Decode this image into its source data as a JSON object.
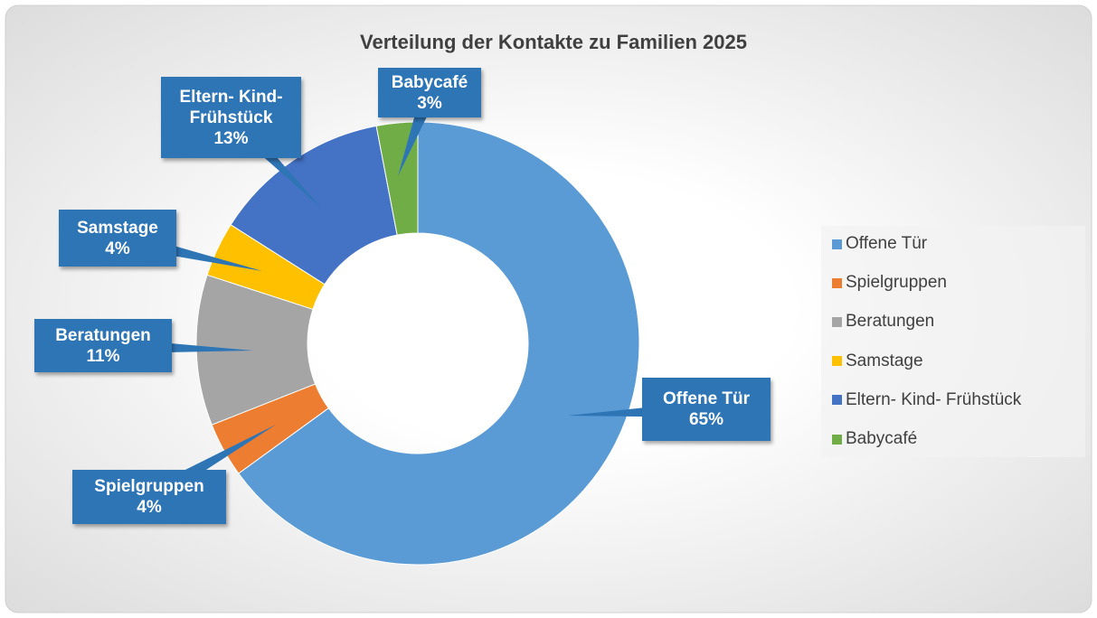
{
  "chart_data": {
    "type": "donut",
    "title": "Verteilung der Kontakte zu Familien 2025",
    "categories": [
      "Offene Tür",
      "Spielgruppen",
      "Beratungen",
      "Samstage",
      "Eltern- Kind- Frühstück",
      "Babycafé"
    ],
    "values": [
      65,
      4,
      11,
      4,
      13,
      3
    ],
    "value_labels": [
      "65%",
      "4%",
      "11%",
      "4%",
      "13%",
      "3%"
    ],
    "colors": [
      "#5b9bd5",
      "#ed7d31",
      "#a5a5a5",
      "#ffc000",
      "#4472c4",
      "#70ad47"
    ],
    "legend": "right"
  }
}
